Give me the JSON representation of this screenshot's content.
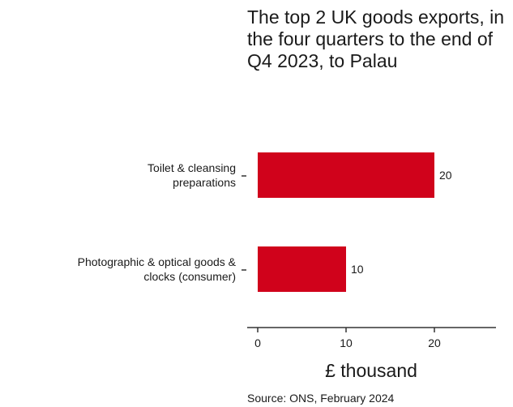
{
  "chart_data": {
    "type": "bar",
    "orientation": "horizontal",
    "title": "The top 2 UK goods exports, in the four quarters to the end of Q4 2023, to Palau",
    "categories": [
      "Toilet & cleansing preparations",
      "Photographic & optical goods & clocks (consumer)"
    ],
    "category_label_lines": [
      [
        "Toilet & cleansing",
        "preparations"
      ],
      [
        "Photographic & optical goods &",
        "clocks (consumer)"
      ]
    ],
    "values": [
      20,
      10
    ],
    "data_labels": [
      "20",
      "10"
    ],
    "xlabel": "£ thousand",
    "ylabel": "",
    "xlim": [
      0,
      27
    ],
    "xticks": [
      0,
      10,
      20
    ],
    "xtick_labels": [
      "0",
      "10",
      "20"
    ],
    "bar_color": "#d0021b",
    "grid": false,
    "legend": "none"
  },
  "source": "Source: ONS, February 2024"
}
